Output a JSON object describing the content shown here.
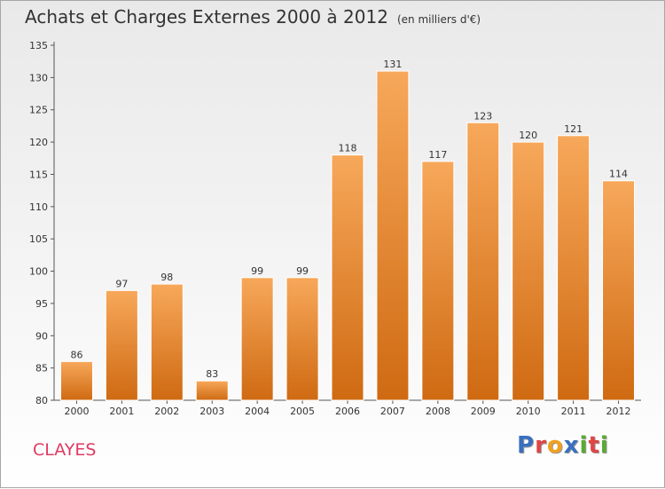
{
  "header": {
    "title": "Achats et Charges Externes 2000 à 2012",
    "unit": "(en milliers d'€)"
  },
  "footer": {
    "commune": "CLAYES",
    "logo": "Proxiti",
    "logo_colors": [
      "#3a6fbf",
      "#e04545",
      "#f0a020",
      "#3a6fbf",
      "#5aaa32",
      "#e04545",
      "#5aaa32"
    ]
  },
  "chart_data": {
    "type": "bar",
    "categories": [
      "2000",
      "2001",
      "2002",
      "2003",
      "2004",
      "2005",
      "2006",
      "2007",
      "2008",
      "2009",
      "2010",
      "2011",
      "2012"
    ],
    "values": [
      86,
      97,
      98,
      83,
      99,
      99,
      118,
      131,
      117,
      123,
      120,
      121,
      114
    ],
    "title": "Achats et Charges Externes 2000 à 2012",
    "ylim": [
      80,
      135
    ],
    "yticks": [
      80,
      85,
      90,
      95,
      100,
      105,
      110,
      115,
      120,
      125,
      130,
      135
    ],
    "grid": false,
    "legend": "none",
    "colors": {
      "bar_top": "#f7a85a",
      "bar_bottom": "#cf6a12",
      "bar_edge": "#ffffff"
    }
  }
}
